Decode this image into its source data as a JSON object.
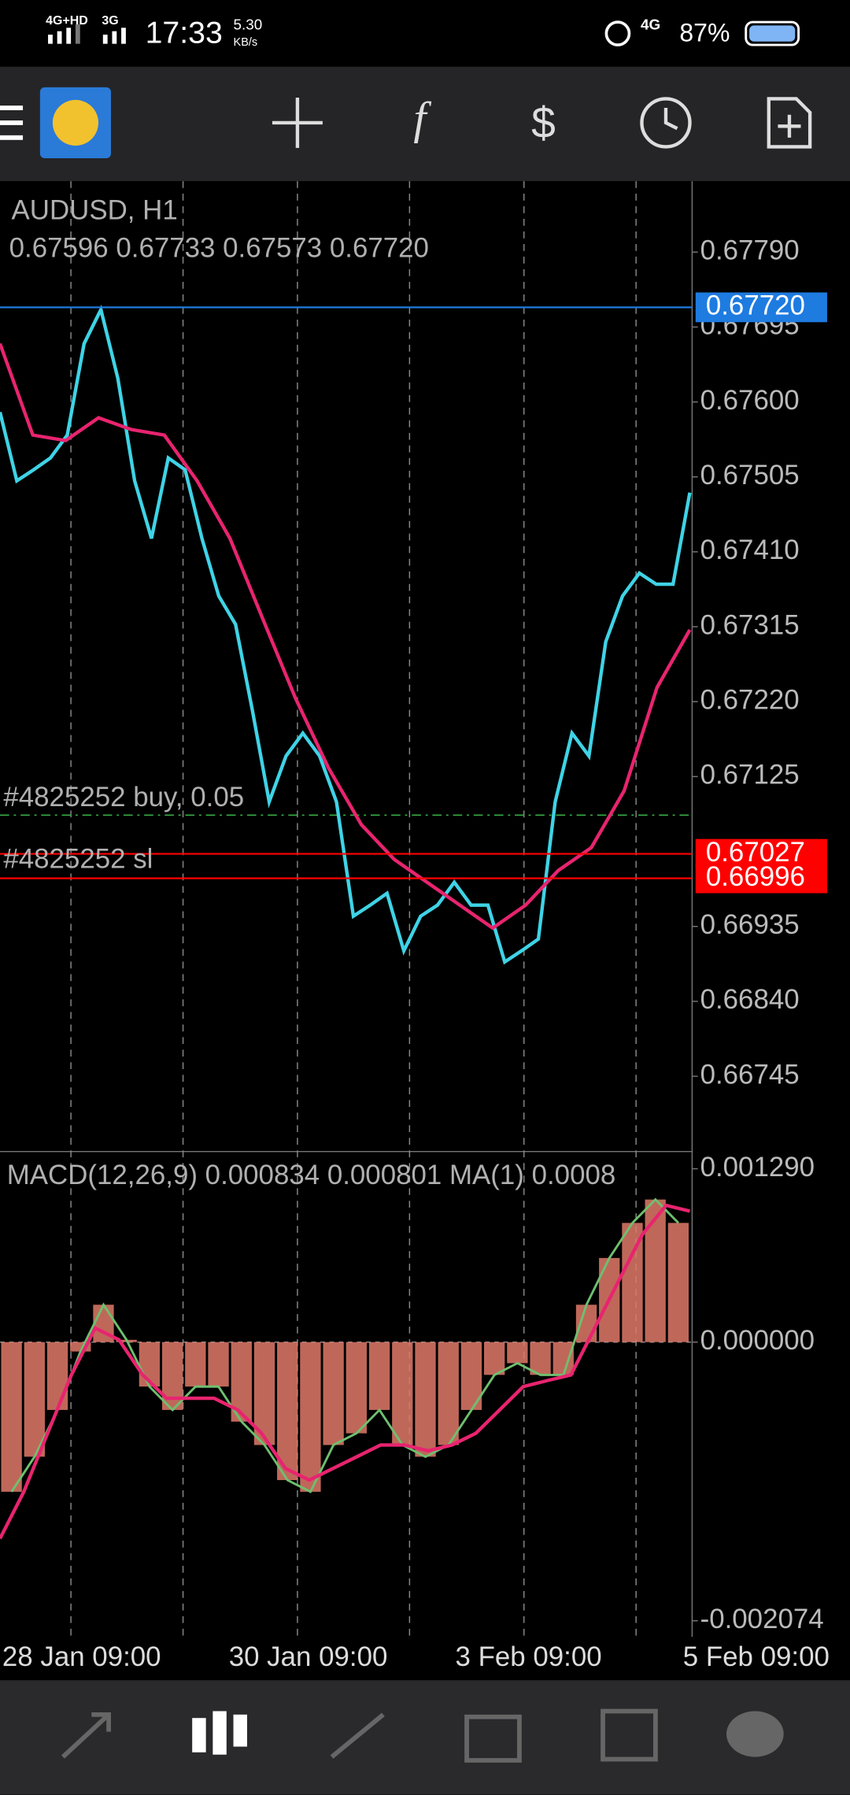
{
  "status_bar": {
    "network_1": "4G+HD",
    "network_2": "3G",
    "time": "17:33",
    "speed": "5.30",
    "speed_unit": "KB/s",
    "network_3": "4G",
    "battery": "87%"
  },
  "chart": {
    "symbol": "AUDUSD, H1",
    "ohlc": "0.67596 0.67733 0.67573 0.67720",
    "order_line": "#4825252 buy, 0.05",
    "sl_line": "#4825252 sl",
    "macd_title": "MACD(12,26,9) 0.000834 0.000801 MA(1) 0.0008",
    "dates": [
      "28 Jan 09:00",
      "30 Jan 09:00",
      "3 Feb 09:00",
      "5 Feb 09:00"
    ]
  },
  "chart_data": [
    {
      "type": "line",
      "ylim": [
        0.66651,
        0.6788
      ],
      "yticks": [
        {
          "value": 0.6779,
          "label": "0.67790"
        },
        {
          "value": 0.67695,
          "label": "0.67695"
        },
        {
          "value": 0.676,
          "label": "0.67600"
        },
        {
          "value": 0.67505,
          "label": "0.67505"
        },
        {
          "value": 0.6741,
          "label": "0.67410"
        },
        {
          "value": 0.67315,
          "label": "0.67315"
        },
        {
          "value": 0.6722,
          "label": "0.67220"
        },
        {
          "value": 0.67125,
          "label": "0.67125"
        },
        {
          "value": 0.66935,
          "label": "0.66935"
        },
        {
          "value": 0.6684,
          "label": "0.66840"
        },
        {
          "value": 0.66745,
          "label": "0.66745"
        }
      ],
      "hlines": [
        {
          "value": 0.6772,
          "label": "0.67720",
          "color": "#1e7be0"
        },
        {
          "value": 0.67027,
          "label": "0.67027",
          "color": "#ff0000"
        },
        {
          "value": 0.66996,
          "label": "0.66996",
          "color": "#ff0000"
        }
      ],
      "series": [
        {
          "color": "#3fd3e6",
          "values": [
            0.67587,
            0.675,
            0.67514,
            0.67529,
            0.67558,
            0.67674,
            0.67717,
            0.6763,
            0.675,
            0.67427,
            0.67529,
            0.67514,
            0.67427,
            0.67354,
            0.67318,
            0.67209,
            0.67093,
            0.67151,
            0.6718,
            0.67151,
            0.67093,
            0.66948,
            0.66962,
            0.66977,
            0.66904,
            0.66948,
            0.66962,
            0.66991,
            0.66962,
            0.66962,
            0.6689,
            0.66904,
            0.66919,
            0.67093,
            0.6718,
            0.67151,
            0.67296,
            0.67354,
            0.67383,
            0.67369,
            0.67369,
            0.67485
          ]
        },
        {
          "color": "#e8246f",
          "values": [
            0.67674,
            0.67558,
            0.67551,
            0.6758,
            0.67565,
            0.67558,
            0.675,
            0.67427,
            0.67325,
            0.67224,
            0.67136,
            0.67064,
            0.6702,
            0.66991,
            0.66962,
            0.66933,
            0.66962,
            0.67006,
            0.67035,
            0.67107,
            0.67238,
            0.67311
          ]
        }
      ]
    },
    {
      "type": "bar",
      "ylim": [
        -0.002193,
        0.001384
      ],
      "yticks": [
        {
          "value": 0.00129,
          "label": "0.001290"
        },
        {
          "value": 0,
          "label": "0.000000"
        },
        {
          "value": -0.002074,
          "label": "-0.002074"
        }
      ],
      "series": [
        {
          "type": "bar",
          "color": "#e07a6a",
          "values": [
            -0.001114,
            -0.000853,
            -0.000505,
            -7e-05,
            0.000278,
            1.7e-05,
            -0.000331,
            -0.000505,
            -0.000331,
            -0.000331,
            -0.000592,
            -0.000766,
            -0.001027,
            -0.001114,
            -0.000766,
            -0.000679,
            -0.000505,
            -0.000766,
            -0.000853,
            -0.000766,
            -0.000505,
            -0.000244,
            -0.000157,
            -0.000244,
            -0.000244,
            0.000278,
            0.000626,
            0.000887,
            0.001061,
            0.000887
          ]
        },
        {
          "type": "line",
          "color": "#e8246f",
          "values": [
            -0.001462,
            -0.001114,
            -0.000679,
            -0.000244,
            0.000104,
            1.7e-05,
            -0.000244,
            -0.000418,
            -0.000418,
            -0.000418,
            -0.000505,
            -0.000679,
            -0.00094,
            -0.001027,
            -0.00094,
            -0.000853,
            -0.000766,
            -0.000766,
            -0.000809,
            -0.000766,
            -0.000679,
            -0.000505,
            -0.000331,
            -0.000287,
            -0.000244,
            0.000104,
            0.000452,
            0.0008,
            0.001018,
            0.000974
          ]
        }
      ]
    }
  ]
}
